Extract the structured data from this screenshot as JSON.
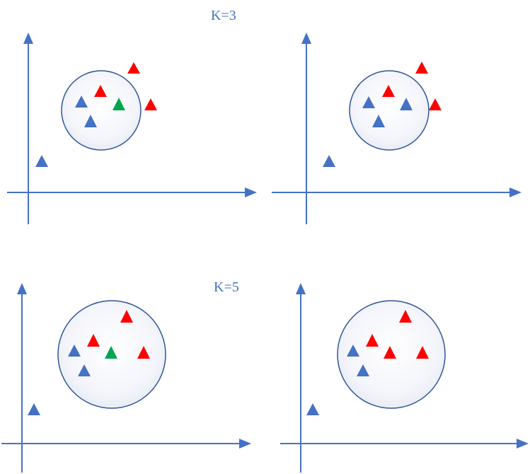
{
  "labels": {
    "k3": "K=3",
    "k5": "K=5"
  },
  "colors": {
    "axis": "#4472c4",
    "circle_stroke": "#2f5597",
    "blue": "#4472c4",
    "red": "#ff0000",
    "green": "#00a550"
  },
  "panels": [
    {
      "id": "k3-before",
      "k": 3,
      "query_class": "green"
    },
    {
      "id": "k3-after",
      "k": 3,
      "query_class": "blue"
    },
    {
      "id": "k5-before",
      "k": 5,
      "query_class": "green"
    },
    {
      "id": "k5-after",
      "k": 5,
      "query_class": "red"
    }
  ]
}
